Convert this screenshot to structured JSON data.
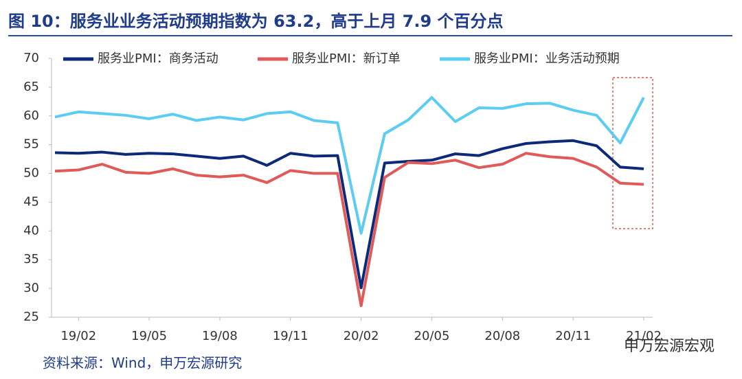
{
  "chart_data": {
    "type": "line",
    "title": "图 10：服务业业务活动预期指数为 63.2，高于上月 7.9 个百分点",
    "source": "资料来源：Wind，申万宏源研究",
    "watermark": "申万宏源宏观",
    "categories": [
      null,
      "19/02",
      null,
      null,
      "19/05",
      null,
      null,
      "19/08",
      null,
      null,
      "19/11",
      null,
      null,
      "20/02",
      null,
      null,
      "20/05",
      null,
      null,
      "20/08",
      null,
      null,
      "20/11",
      null,
      null,
      "21/02"
    ],
    "series": [
      {
        "name": "服务业PMI：商务活动",
        "color": "#0d2a7a",
        "values": [
          53.6,
          53.5,
          53.7,
          53.3,
          53.5,
          53.4,
          53.0,
          52.6,
          53.0,
          51.4,
          53.5,
          53.0,
          53.1,
          30.1,
          51.8,
          52.1,
          52.3,
          53.4,
          53.1,
          54.3,
          55.2,
          55.5,
          55.7,
          54.8,
          51.1,
          50.8
        ]
      },
      {
        "name": "服务业PMI：新订单",
        "color": "#e05a5a",
        "values": [
          50.4,
          50.6,
          51.6,
          50.2,
          50.0,
          50.8,
          49.7,
          49.4,
          49.7,
          48.4,
          50.5,
          50.0,
          50.0,
          27.0,
          49.3,
          51.9,
          51.7,
          52.3,
          51.0,
          51.6,
          53.5,
          52.9,
          52.6,
          51.1,
          48.3,
          48.1
        ]
      },
      {
        "name": "服务业PMI：业务活动预期",
        "color": "#5bcdf2",
        "values": [
          59.8,
          60.7,
          60.4,
          60.1,
          59.5,
          60.3,
          59.2,
          59.8,
          59.3,
          60.4,
          60.7,
          59.2,
          58.8,
          39.6,
          56.9,
          59.3,
          63.2,
          59.0,
          61.4,
          61.3,
          62.1,
          62.2,
          61.0,
          60.1,
          55.3,
          63.2
        ]
      }
    ],
    "ylim": [
      25,
      70
    ],
    "yticks": [
      25,
      30,
      35,
      40,
      45,
      50,
      55,
      60,
      65,
      70
    ]
  }
}
